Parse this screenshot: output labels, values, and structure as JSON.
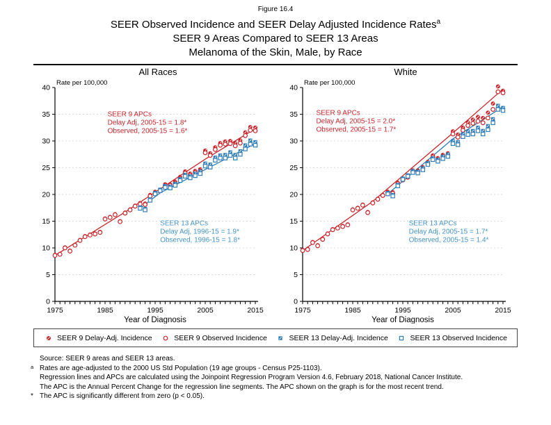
{
  "figure_label": "Figure 16.4",
  "title_line1": "SEER Observed Incidence and SEER Delay Adjusted Incidence Rates",
  "title_superscript": "a",
  "title_line2": "SEER 9 Areas Compared to SEER 13 Areas",
  "title_line3": "Melanoma of the Skin, Male, by Race",
  "colors": {
    "red": "#C9252B",
    "blue": "#2E7CB8",
    "blue_text": "#4593C5",
    "grid": "#DADADA",
    "axis": "#000000"
  },
  "legend": {
    "items": [
      {
        "label": "SEER 9 Delay-Adj. Incidence",
        "marker": "filled-circle",
        "color": "#C9252B"
      },
      {
        "label": "SEER 9 Observed Incidence",
        "marker": "open-circle",
        "color": "#C9252B"
      },
      {
        "label": "SEER 13 Delay-Adj. Incidence",
        "marker": "filled-square",
        "color": "#2E7CB8"
      },
      {
        "label": "SEER 13 Observed Incidence",
        "marker": "open-square",
        "color": "#2E7CB8"
      }
    ]
  },
  "footnotes": [
    {
      "prefix": "",
      "sup": false,
      "text": "Source: SEER 9 areas and SEER 13 areas."
    },
    {
      "prefix": "a",
      "sup": true,
      "text": "Rates are age-adjusted to the 2000 US Std Population (19 age groups - Census P25-1103)."
    },
    {
      "prefix": "",
      "sup": false,
      "text": "Regression lines and APCs are calculated using the Joinpoint Regression Program Version 4.6, February 2018, National Cancer Institute."
    },
    {
      "prefix": "",
      "sup": false,
      "text": "The APC is the Annual Percent Change for the regression line segments. The APC shown on the graph is for the most recent trend."
    },
    {
      "prefix": "*",
      "sup": false,
      "text": "The APC is significantly different from zero (p < 0.05)."
    }
  ],
  "chart_data": [
    {
      "type": "scatter",
      "title": "All Races",
      "ylabel": "Rate per 100,000",
      "xlabel": "Year of Diagnosis",
      "xlim": [
        1975,
        2015
      ],
      "ylim": [
        0,
        40
      ],
      "x_ticks": [
        1975,
        1985,
        1995,
        2005,
        2015
      ],
      "y_ticks": [
        0,
        5,
        10,
        15,
        20,
        25,
        30,
        35,
        40
      ],
      "grid": "horizontal-dashed",
      "series": [
        {
          "name": "SEER 9 Delay-Adj. Incidence",
          "marker": "filled-circle",
          "color": "#C9252B",
          "x_start": 1975,
          "values": [
            8.7,
            8.9,
            10.1,
            9.5,
            10.6,
            11.5,
            12.2,
            12.5,
            12.7,
            13.0,
            15.5,
            15.8,
            16.3,
            15.0,
            16.6,
            17.2,
            17.9,
            18.4,
            18.3,
            19.9,
            20.5,
            20.9,
            21.9,
            21.9,
            22.4,
            23.3,
            24.3,
            23.9,
            24.4,
            24.7,
            28.2,
            27.7,
            28.8,
            29.6,
            29.9,
            30.0,
            29.6,
            30.1,
            31.6,
            32.6,
            32.5
          ]
        },
        {
          "name": "SEER 9 Observed Incidence",
          "marker": "open-circle",
          "color": "#C9252B",
          "x_start": 1975,
          "values": [
            8.6,
            8.8,
            10.0,
            9.4,
            10.5,
            11.4,
            12.1,
            12.4,
            12.6,
            12.9,
            15.4,
            15.7,
            16.2,
            14.9,
            16.5,
            17.1,
            17.8,
            18.2,
            18.1,
            19.7,
            20.3,
            20.7,
            21.7,
            21.7,
            22.1,
            23.0,
            24.0,
            23.6,
            24.1,
            24.4,
            27.8,
            27.3,
            28.4,
            29.2,
            29.4,
            29.5,
            29.1,
            29.6,
            31.0,
            32.0,
            31.9
          ]
        },
        {
          "name": "SEER 13 Delay-Adj. Incidence",
          "marker": "filled-square",
          "color": "#2E7CB8",
          "x_start": 1992,
          "values": [
            17.6,
            17.3,
            19.1,
            20.3,
            20.9,
            21.6,
            21.5,
            22.0,
            22.9,
            23.7,
            23.4,
            23.9,
            24.3,
            25.8,
            25.6,
            26.9,
            27.3,
            27.4,
            27.9,
            27.4,
            28.1,
            29.2,
            30.1,
            29.8
          ]
        },
        {
          "name": "SEER 13 Observed Incidence",
          "marker": "open-square",
          "color": "#2E7CB8",
          "x_start": 1992,
          "values": [
            17.4,
            17.1,
            18.9,
            20.1,
            20.7,
            21.3,
            21.2,
            21.7,
            22.6,
            23.4,
            23.1,
            23.5,
            23.9,
            25.3,
            25.1,
            26.4,
            26.8,
            26.8,
            27.3,
            26.8,
            27.5,
            28.5,
            29.4,
            29.2
          ]
        }
      ],
      "trend_lines": [
        {
          "color": "#C9252B",
          "points": [
            [
              1975,
              8.6
            ],
            [
              1989,
              16.7
            ],
            [
              2005,
              26.6
            ],
            [
              2015,
              32.3
            ]
          ]
        },
        {
          "color": "#2E7CB8",
          "points": [
            [
              1992,
              17.4
            ],
            [
              1996,
              20.3
            ],
            [
              2015,
              29.5
            ]
          ]
        }
      ],
      "annotations": [
        {
          "color": "#C9252B",
          "x": 1985.5,
          "y": 34.6,
          "lines": [
            "SEER 9 APCs",
            "Delay Adj, 2005-15 = 1.8*",
            "Observed, 2005-15 = 1.6*"
          ]
        },
        {
          "color": "#4593C5",
          "x": 1996.0,
          "y": 14.2,
          "lines": [
            "SEER 13 APCs",
            "Delay Adj, 1996-15 = 1.9*",
            "Observed, 1996-15 = 1.8*"
          ]
        }
      ]
    },
    {
      "type": "scatter",
      "title": "White",
      "ylabel": "Rate per 100,000",
      "xlabel": "Year of Diagnosis",
      "xlim": [
        1975,
        2015
      ],
      "ylim": [
        0,
        40
      ],
      "x_ticks": [
        1975,
        1985,
        1995,
        2005,
        2015
      ],
      "y_ticks": [
        0,
        5,
        10,
        15,
        20,
        25,
        30,
        35,
        40
      ],
      "grid": "horizontal-dashed",
      "series": [
        {
          "name": "SEER 9 Delay-Adj. Incidence",
          "marker": "filled-circle",
          "color": "#C9252B",
          "x_start": 1975,
          "values": [
            9.6,
            9.8,
            11.1,
            10.5,
            11.7,
            12.7,
            13.5,
            13.8,
            14.1,
            14.4,
            17.2,
            17.5,
            18.1,
            16.7,
            18.5,
            19.2,
            19.9,
            20.5,
            20.4,
            22.2,
            22.9,
            23.4,
            24.5,
            24.5,
            25.1,
            26.1,
            27.3,
            26.8,
            27.4,
            27.7,
            31.8,
            31.2,
            32.5,
            33.5,
            34.0,
            34.5,
            34.3,
            35.3,
            37.0,
            40.2,
            39.4
          ]
        },
        {
          "name": "SEER 9 Observed Incidence",
          "marker": "open-circle",
          "color": "#C9252B",
          "x_start": 1975,
          "values": [
            9.5,
            9.7,
            11.0,
            10.4,
            11.6,
            12.6,
            13.4,
            13.7,
            14.0,
            14.3,
            17.1,
            17.4,
            18.0,
            16.6,
            18.4,
            19.1,
            19.8,
            20.3,
            20.2,
            22.0,
            22.7,
            23.2,
            24.3,
            24.3,
            24.8,
            25.8,
            27.0,
            26.5,
            27.1,
            27.4,
            31.3,
            30.7,
            32.0,
            32.9,
            33.3,
            33.7,
            33.4,
            34.3,
            35.9,
            39.2,
            39.0
          ]
        },
        {
          "name": "SEER 13 Delay-Adj. Incidence",
          "marker": "filled-square",
          "color": "#2E7CB8",
          "x_start": 1992,
          "values": [
            20.3,
            19.9,
            21.8,
            23.0,
            23.6,
            24.4,
            24.3,
            24.9,
            25.9,
            26.8,
            26.5,
            27.1,
            27.5,
            30.0,
            29.8,
            31.3,
            31.8,
            31.9,
            32.5,
            31.9,
            32.8,
            34.1,
            36.6,
            36.2
          ]
        },
        {
          "name": "SEER 13 Observed Incidence",
          "marker": "open-square",
          "color": "#2E7CB8",
          "x_start": 1992,
          "values": [
            20.1,
            19.7,
            21.6,
            22.8,
            23.4,
            24.1,
            24.0,
            24.6,
            25.6,
            26.5,
            26.2,
            26.7,
            27.1,
            29.5,
            29.3,
            30.8,
            31.2,
            31.3,
            31.9,
            31.3,
            32.1,
            33.4,
            35.9,
            35.7
          ]
        }
      ],
      "trend_lines": [
        {
          "color": "#C9252B",
          "points": [
            [
              1975,
              9.5
            ],
            [
              1989,
              18.7
            ],
            [
              2005,
              31.5
            ],
            [
              2015,
              39.7
            ]
          ]
        },
        {
          "color": "#2E7CB8",
          "points": [
            [
              1992,
              20.1
            ],
            [
              2005,
              30.4
            ],
            [
              2015,
              36.4
            ]
          ]
        }
      ],
      "annotations": [
        {
          "color": "#C9252B",
          "x": 1977.7,
          "y": 34.9,
          "lines": [
            "SEER 9 APCs",
            "Delay Adj, 2005-15 = 2.0*",
            "Observed, 2005-15 = 1.7*"
          ]
        },
        {
          "color": "#4593C5",
          "x": 1996.2,
          "y": 14.2,
          "lines": [
            "SEER 13 APCs",
            "Delay Adj, 2005-15 = 1.7*",
            "Observed, 2005-15 = 1.4*"
          ]
        }
      ]
    }
  ]
}
